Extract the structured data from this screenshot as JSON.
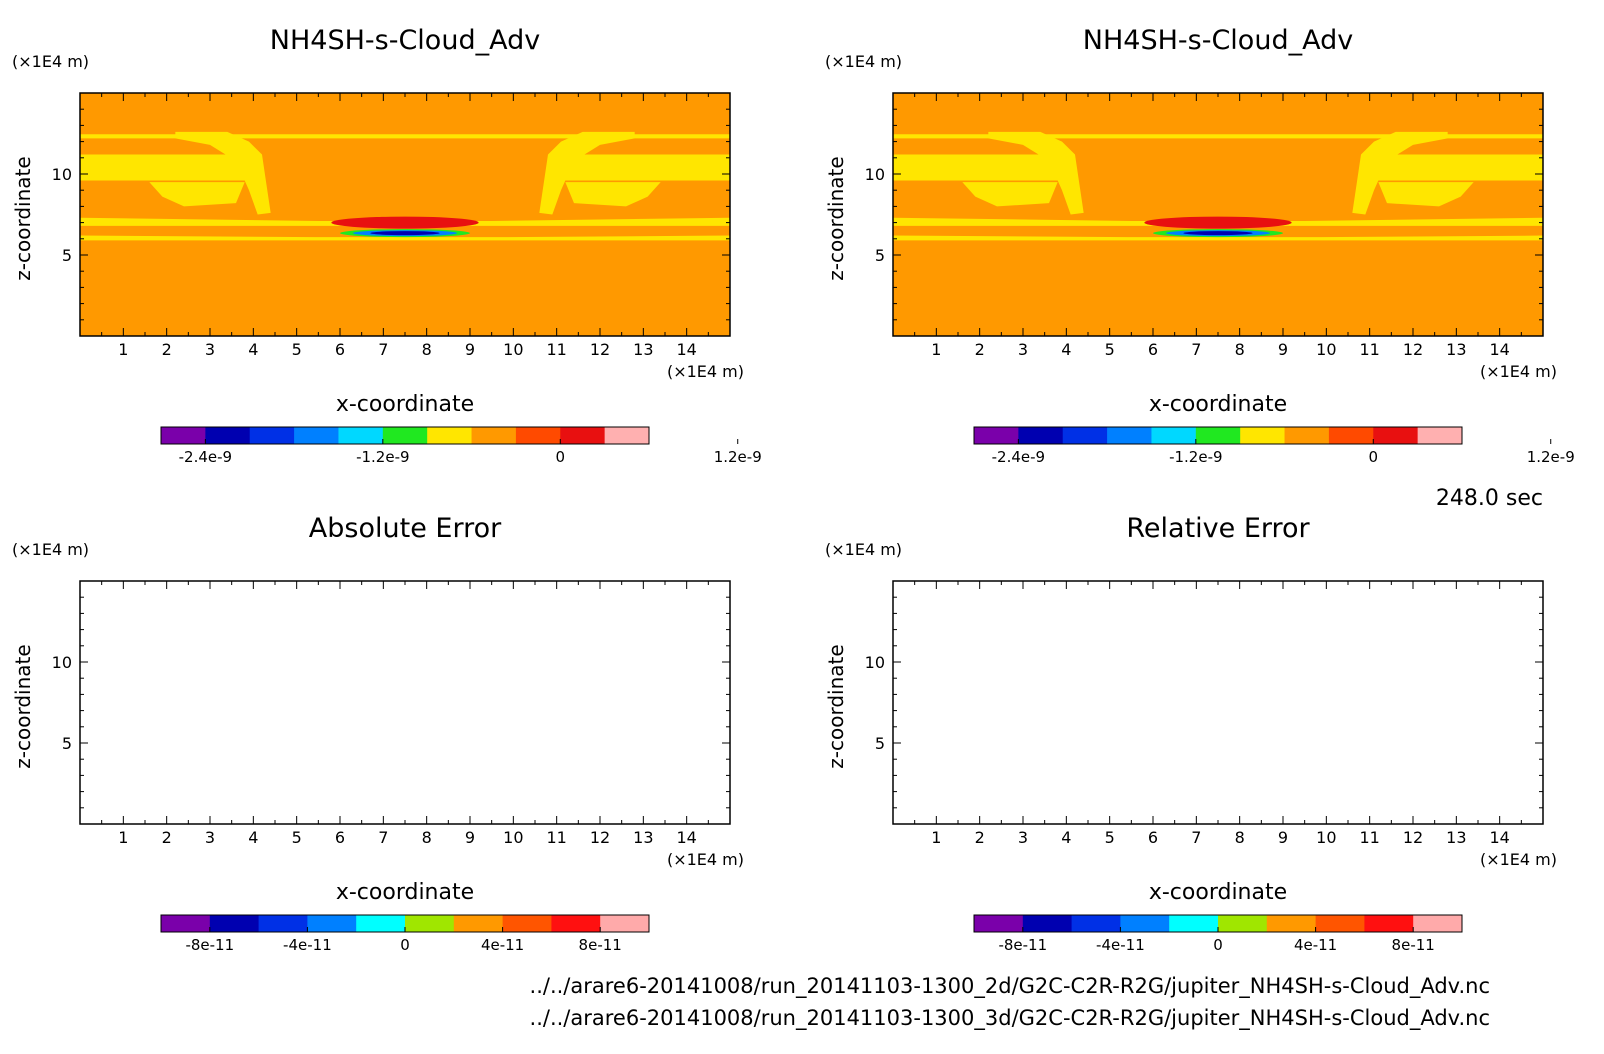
{
  "time_label": "248.0 sec",
  "file_paths": [
    "../../arare6-20141008/run_20141103-1300_2d/G2C-C2R-R2G/jupiter_NH4SH-s-Cloud_Adv.nc",
    "../../arare6-20141008/run_20141103-1300_3d/G2C-C2R-R2G/jupiter_NH4SH-s-Cloud_Adv.nc"
  ],
  "chart_data": [
    {
      "type": "heatmap",
      "title": "NH4SH-s-Cloud_Adv",
      "xlabel": "x-coordinate",
      "ylabel": "z-coordinate",
      "x_unit": "(×1E4 m)",
      "y_unit": "(×1E4 m)",
      "xlim": [
        0,
        15
      ],
      "ylim": [
        0,
        15
      ],
      "x_ticks": [
        1,
        2,
        3,
        4,
        5,
        6,
        7,
        8,
        9,
        10,
        11,
        12,
        13,
        14
      ],
      "y_ticks": [
        5,
        10
      ],
      "filled": true,
      "colorbar": {
        "colors": [
          "#7a00aa",
          "#0000b0",
          "#0030e6",
          "#0080ff",
          "#00d8ff",
          "#20e820",
          "#ffe600",
          "#ff9900",
          "#ff4a00",
          "#e81010",
          "#ffb0b0"
        ],
        "tick_labels": [
          "-2.4e-9",
          "-1.2e-9",
          "0",
          "1.2e-9"
        ],
        "tick_values": [
          -2.4e-09,
          -1.2e-09,
          0,
          1.2e-09
        ]
      }
    },
    {
      "type": "heatmap",
      "title": "NH4SH-s-Cloud_Adv",
      "xlabel": "x-coordinate",
      "ylabel": "z-coordinate",
      "x_unit": "(×1E4 m)",
      "y_unit": "(×1E4 m)",
      "xlim": [
        0,
        15
      ],
      "ylim": [
        0,
        15
      ],
      "x_ticks": [
        1,
        2,
        3,
        4,
        5,
        6,
        7,
        8,
        9,
        10,
        11,
        12,
        13,
        14
      ],
      "y_ticks": [
        5,
        10
      ],
      "filled": true,
      "colorbar": {
        "colors": [
          "#7a00aa",
          "#0000b0",
          "#0030e6",
          "#0080ff",
          "#00d8ff",
          "#20e820",
          "#ffe600",
          "#ff9900",
          "#ff4a00",
          "#e81010",
          "#ffb0b0"
        ],
        "tick_labels": [
          "-2.4e-9",
          "-1.2e-9",
          "0",
          "1.2e-9"
        ],
        "tick_values": [
          -2.4e-09,
          -1.2e-09,
          0,
          1.2e-09
        ]
      }
    },
    {
      "type": "heatmap",
      "title": "Absolute Error",
      "xlabel": "x-coordinate",
      "ylabel": "z-coordinate",
      "x_unit": "(×1E4 m)",
      "y_unit": "(×1E4 m)",
      "xlim": [
        0,
        15
      ],
      "ylim": [
        0,
        15
      ],
      "x_ticks": [
        1,
        2,
        3,
        4,
        5,
        6,
        7,
        8,
        9,
        10,
        11,
        12,
        13,
        14
      ],
      "y_ticks": [
        5,
        10
      ],
      "filled": false,
      "colorbar": {
        "colors": [
          "#7a00aa",
          "#0000b0",
          "#0030e6",
          "#0080ff",
          "#00ffff",
          "#a0e600",
          "#ff9900",
          "#ff5500",
          "#ff1010",
          "#ffaaaa"
        ],
        "tick_labels": [
          "-8e-11",
          "-4e-11",
          "0",
          "4e-11",
          "8e-11"
        ],
        "tick_values": [
          -8e-11,
          -4e-11,
          0,
          4e-11,
          8e-11
        ]
      }
    },
    {
      "type": "heatmap",
      "title": "Relative Error",
      "xlabel": "x-coordinate",
      "ylabel": "z-coordinate",
      "x_unit": "(×1E4 m)",
      "y_unit": "(×1E4 m)",
      "xlim": [
        0,
        15
      ],
      "ylim": [
        0,
        15
      ],
      "x_ticks": [
        1,
        2,
        3,
        4,
        5,
        6,
        7,
        8,
        9,
        10,
        11,
        12,
        13,
        14
      ],
      "y_ticks": [
        5,
        10
      ],
      "filled": false,
      "colorbar": {
        "colors": [
          "#7a00aa",
          "#0000b0",
          "#0030e6",
          "#0080ff",
          "#00ffff",
          "#a0e600",
          "#ff9900",
          "#ff5500",
          "#ff1010",
          "#ffaaaa"
        ],
        "tick_labels": [
          "-8e-11",
          "-4e-11",
          "0",
          "4e-11",
          "8e-11"
        ],
        "tick_values": [
          -8e-11,
          -4e-11,
          0,
          4e-11,
          8e-11
        ]
      }
    }
  ]
}
